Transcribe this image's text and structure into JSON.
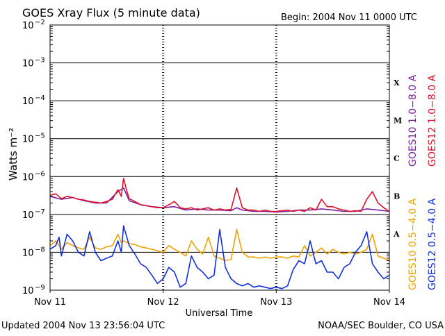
{
  "header": {
    "title": "GOES Xray Flux (5 minute data)",
    "begin": "Begin:  2004 Nov 11 0000 UTC"
  },
  "footer": {
    "updated": "Updated 2004 Nov 13 23:56:04 UTC",
    "credit": "NOAA/SEC Boulder, CO USA"
  },
  "colors": {
    "goes10_long": "#7b1fa2",
    "goes12_long": "#e0102a",
    "goes10_short": "#f0a000",
    "goes12_short": "#1030e0",
    "axis": "#000000"
  },
  "chart_data": {
    "type": "line",
    "title": "GOES Xray Flux (5 minute data)",
    "xlabel": "Universal Time",
    "ylabel": "Watts m⁻²",
    "yscale": "log",
    "ylim": [
      1e-09,
      0.01
    ],
    "xlim": [
      "2004-11-11",
      "2004-11-14"
    ],
    "x_ticks": [
      "Nov 11",
      "Nov 12",
      "Nov 13",
      "Nov 14"
    ],
    "y_ticks": [
      {
        "base": "10",
        "exp": "−2",
        "value": 0.01
      },
      {
        "base": "10",
        "exp": "−3",
        "value": 0.001
      },
      {
        "base": "10",
        "exp": "−4",
        "value": 0.0001
      },
      {
        "base": "10",
        "exp": "−5",
        "value": 1e-05
      },
      {
        "base": "10",
        "exp": "−6",
        "value": 1e-06
      },
      {
        "base": "10",
        "exp": "−7",
        "value": 1e-07
      },
      {
        "base": "10",
        "exp": "−8",
        "value": 1e-08
      },
      {
        "base": "10",
        "exp": "−9",
        "value": 1e-09
      }
    ],
    "flare_classes": [
      {
        "label": "X",
        "value": 0.0001
      },
      {
        "label": "M",
        "value": 1e-05
      },
      {
        "label": "C",
        "value": 1e-06
      },
      {
        "label": "B",
        "value": 1e-07
      },
      {
        "label": "A",
        "value": 1e-08
      }
    ],
    "legend": [
      {
        "label": "GOES10 1.0−8.0 A",
        "color": "#7b1fa2"
      },
      {
        "label": "GOES12 1.0−8.0 A",
        "color": "#e0102a"
      },
      {
        "label": "GOES10 0.5−4.0 A",
        "color": "#f0a000"
      },
      {
        "label": "GOES12 0.5−4.0 A",
        "color": "#1030e0"
      }
    ],
    "series": [
      {
        "name": "GOES10 1.0−8.0 A",
        "color": "#7b1fa2",
        "x_days": [
          0,
          0.1,
          0.2,
          0.3,
          0.4,
          0.5,
          0.6,
          0.65,
          0.7,
          0.8,
          0.9,
          1.0,
          1.1,
          1.2,
          1.3,
          1.4,
          1.5,
          1.6,
          1.65,
          1.7,
          1.8,
          1.9,
          2.0,
          2.1,
          2.2,
          2.3,
          2.4,
          2.5,
          2.6,
          2.7,
          2.8,
          2.9,
          3.0
        ],
        "values": [
          3e-07,
          2.5e-07,
          2.8e-07,
          2.3e-07,
          2e-07,
          2e-07,
          4e-07,
          5e-07,
          2.3e-07,
          1.8e-07,
          1.6e-07,
          1.5e-07,
          1.6e-07,
          1.3e-07,
          1.4e-07,
          1.3e-07,
          1.3e-07,
          1.25e-07,
          1.5e-07,
          1.3e-07,
          1.2e-07,
          1.2e-07,
          1.15e-07,
          1.2e-07,
          1.3e-07,
          1.3e-07,
          1.4e-07,
          1.3e-07,
          1.2e-07,
          1.2e-07,
          1.4e-07,
          1.3e-07,
          1.2e-07
        ]
      },
      {
        "name": "GOES12 1.0−8.0 A",
        "color": "#e0102a",
        "x_days": [
          0,
          0.05,
          0.1,
          0.15,
          0.2,
          0.25,
          0.3,
          0.35,
          0.4,
          0.45,
          0.5,
          0.55,
          0.6,
          0.63,
          0.65,
          0.68,
          0.7,
          0.75,
          0.8,
          0.85,
          0.9,
          0.95,
          1.0,
          1.05,
          1.1,
          1.15,
          1.2,
          1.25,
          1.3,
          1.35,
          1.4,
          1.45,
          1.5,
          1.55,
          1.6,
          1.65,
          1.7,
          1.75,
          1.8,
          1.85,
          1.9,
          1.95,
          2.0,
          2.05,
          2.1,
          2.15,
          2.2,
          2.25,
          2.3,
          2.35,
          2.4,
          2.45,
          2.5,
          2.55,
          2.6,
          2.65,
          2.7,
          2.75,
          2.8,
          2.85,
          2.9,
          2.95,
          3.0
        ],
        "values": [
          3.2e-07,
          3.5e-07,
          2.6e-07,
          3e-07,
          2.8e-07,
          2.5e-07,
          2.4e-07,
          2.2e-07,
          2.1e-07,
          2e-07,
          2.2e-07,
          2.5e-07,
          4.5e-07,
          3e-07,
          9e-07,
          4e-07,
          2.6e-07,
          2.2e-07,
          1.8e-07,
          1.7e-07,
          1.6e-07,
          1.5e-07,
          1.5e-07,
          1.8e-07,
          2.2e-07,
          1.5e-07,
          1.4e-07,
          1.5e-07,
          1.3e-07,
          1.4e-07,
          1.5e-07,
          1.3e-07,
          1.4e-07,
          1.3e-07,
          1.35e-07,
          5e-07,
          1.5e-07,
          1.3e-07,
          1.3e-07,
          1.2e-07,
          1.3e-07,
          1.2e-07,
          1.2e-07,
          1.25e-07,
          1.3e-07,
          1.2e-07,
          1.3e-07,
          1.2e-07,
          1.5e-07,
          1.3e-07,
          2.5e-07,
          1.6e-07,
          1.6e-07,
          1.4e-07,
          1.3e-07,
          1.2e-07,
          1.25e-07,
          1.2e-07,
          2.5e-07,
          4e-07,
          2e-07,
          1.5e-07,
          1.2e-07
        ]
      },
      {
        "name": "GOES10 0.5−4.0 A",
        "color": "#f0a000",
        "x_days": [
          0,
          0.05,
          0.1,
          0.15,
          0.2,
          0.25,
          0.3,
          0.35,
          0.4,
          0.45,
          0.5,
          0.55,
          0.6,
          0.63,
          0.65,
          0.7,
          0.75,
          0.8,
          0.85,
          0.9,
          0.95,
          1.0,
          1.05,
          1.1,
          1.15,
          1.2,
          1.25,
          1.3,
          1.35,
          1.4,
          1.45,
          1.5,
          1.55,
          1.6,
          1.65,
          1.7,
          1.75,
          1.8,
          1.85,
          1.9,
          1.95,
          2.0,
          2.05,
          2.1,
          2.15,
          2.2,
          2.25,
          2.3,
          2.35,
          2.4,
          2.45,
          2.5,
          2.55,
          2.6,
          2.65,
          2.7,
          2.75,
          2.8,
          2.85,
          2.9,
          2.95,
          3.0
        ],
        "values": [
          1.5e-08,
          2e-08,
          1.2e-08,
          1.8e-08,
          1.5e-08,
          1.3e-08,
          1.2e-08,
          2.5e-08,
          1.3e-08,
          1.2e-08,
          1.4e-08,
          1.5e-08,
          3e-08,
          1.8e-08,
          2e-08,
          1.7e-08,
          1.6e-08,
          1.4e-08,
          1.3e-08,
          1.2e-08,
          1.1e-08,
          1e-08,
          1.5e-08,
          1.2e-08,
          1e-08,
          8e-09,
          2e-08,
          1.2e-08,
          9e-09,
          2.5e-08,
          8e-09,
          7e-09,
          6e-09,
          6.5e-09,
          4e-08,
          1e-08,
          7.5e-09,
          7.5e-09,
          7e-09,
          7.5e-09,
          7e-09,
          7.5e-09,
          7.5e-09,
          7e-09,
          8e-09,
          7.5e-09,
          1.5e-08,
          8e-09,
          1e-08,
          1.3e-08,
          9e-09,
          1.2e-08,
          1e-08,
          9e-09,
          1e-08,
          9e-09,
          1e-08,
          1.2e-08,
          3e-08,
          8e-09,
          7e-09,
          6e-09
        ]
      },
      {
        "name": "GOES12 0.5−4.0 A",
        "color": "#1030e0",
        "x_days": [
          0,
          0.05,
          0.08,
          0.1,
          0.15,
          0.2,
          0.25,
          0.3,
          0.35,
          0.4,
          0.45,
          0.5,
          0.55,
          0.6,
          0.63,
          0.65,
          0.7,
          0.75,
          0.8,
          0.85,
          0.9,
          0.95,
          1.0,
          1.05,
          1.1,
          1.15,
          1.2,
          1.25,
          1.3,
          1.35,
          1.4,
          1.45,
          1.5,
          1.55,
          1.6,
          1.65,
          1.7,
          1.75,
          1.8,
          1.85,
          1.9,
          1.95,
          2.0,
          2.05,
          2.1,
          2.15,
          2.2,
          2.25,
          2.3,
          2.35,
          2.4,
          2.45,
          2.5,
          2.55,
          2.6,
          2.65,
          2.7,
          2.75,
          2.8,
          2.85,
          2.9,
          2.95,
          3.0
        ],
        "values": [
          1.2e-08,
          1.5e-08,
          2.5e-08,
          8e-09,
          3e-08,
          2e-08,
          1e-08,
          8e-09,
          3.5e-08,
          1e-08,
          6e-09,
          7e-09,
          8e-09,
          2e-08,
          1e-08,
          5e-08,
          1.5e-08,
          9e-09,
          5e-09,
          4e-09,
          2.5e-09,
          1.5e-09,
          2e-09,
          4e-09,
          3e-09,
          1.2e-09,
          1.5e-09,
          8e-09,
          4e-09,
          3e-09,
          2e-09,
          2.5e-09,
          4e-08,
          4e-09,
          2e-09,
          1.5e-09,
          1.3e-09,
          1.5e-09,
          1.2e-09,
          1.3e-09,
          1.2e-09,
          1.1e-09,
          1.2e-09,
          1.1e-09,
          1.3e-09,
          3.5e-09,
          6e-09,
          5e-09,
          2e-08,
          5e-09,
          6e-09,
          3e-09,
          3e-09,
          2e-09,
          4e-09,
          5e-09,
          1e-08,
          1.5e-08,
          3.5e-08,
          5e-09,
          3e-09,
          2e-09,
          2.5e-09
        ]
      }
    ]
  }
}
